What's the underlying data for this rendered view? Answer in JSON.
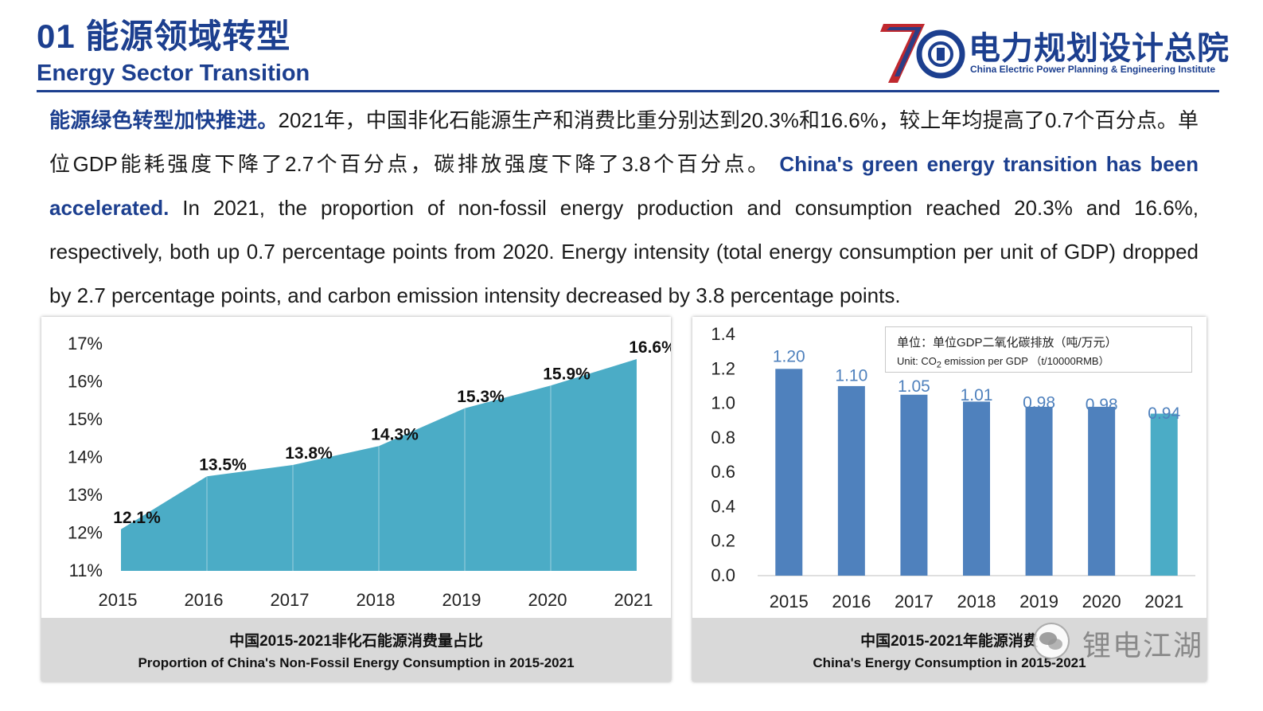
{
  "header": {
    "title": "01 能源领域转型",
    "subtitle": "Energy Sector Transition",
    "logo_cn": "电力规划设计总院",
    "logo_en": "China Electric Power Planning & Engineering Institute",
    "logo_mark": "70"
  },
  "paragraph": {
    "cn_lead": "能源绿色转型加快推进。",
    "cn_body": "2021年，中国非化石能源生产和消费比重分别达到20.3%和16.6%，较上年均提高了0.7个百分点。单位GDP能耗强度下降了2.7个百分点，碳排放强度下降了3.8个百分点。",
    "en_lead": "China's green energy transition has been accelerated.",
    "en_body": " In 2021, the proportion of non-fossil energy production and consumption reached 20.3% and 16.6%, respectively, both up 0.7 percentage points from 2020. Energy intensity (total energy consumption per unit of GDP) dropped by 2.7 percentage points, and carbon emission intensity decreased by 3.8 percentage points."
  },
  "chart_data": [
    {
      "type": "area",
      "x": [
        "2015",
        "2016",
        "2017",
        "2018",
        "2019",
        "2020",
        "2021"
      ],
      "values": [
        12.1,
        13.5,
        13.8,
        14.3,
        15.3,
        15.9,
        16.6
      ],
      "value_labels": [
        "12.1%",
        "13.5%",
        "13.8%",
        "14.3%",
        "15.3%",
        "15.9%",
        "16.6%"
      ],
      "yticks": [
        "11%",
        "12%",
        "13%",
        "14%",
        "15%",
        "16%",
        "17%"
      ],
      "ylim": [
        11,
        17
      ],
      "color": "#4bacc6",
      "title_cn": "中国2015-2021非化石能源消费量占比",
      "title_en": "Proportion of China's Non-Fossil Energy Consumption in 2015-2021"
    },
    {
      "type": "bar",
      "categories": [
        "2015",
        "2016",
        "2017",
        "2018",
        "2019",
        "2020",
        "2021"
      ],
      "values": [
        1.2,
        1.1,
        1.05,
        1.01,
        0.98,
        0.98,
        0.94
      ],
      "value_labels": [
        "1.20",
        "1.10",
        "1.05",
        "1.01",
        "0.98",
        "0.98",
        "0.94"
      ],
      "yticks": [
        "0.0",
        "0.2",
        "0.4",
        "0.6",
        "0.8",
        "1.0",
        "1.2",
        "1.4"
      ],
      "ylim": [
        0,
        1.4
      ],
      "colors": [
        "#4f81bd",
        "#4f81bd",
        "#4f81bd",
        "#4f81bd",
        "#4f81bd",
        "#4f81bd",
        "#4bacc6"
      ],
      "label_color": "#4f81bd",
      "unit_cn": "单位：单位GDP二氧化碳排放（吨/万元）",
      "unit_en_pre": "Unit: CO",
      "unit_en_sub": "2",
      "unit_en_post": " emission per GDP （t/10000RMB）",
      "title_cn": "中国2015-2021年能源消费",
      "title_en": "China's Energy Consumption in 2015-2021"
    }
  ],
  "watermark": {
    "text": "锂电江湖",
    "icon": "wechat-icon"
  }
}
